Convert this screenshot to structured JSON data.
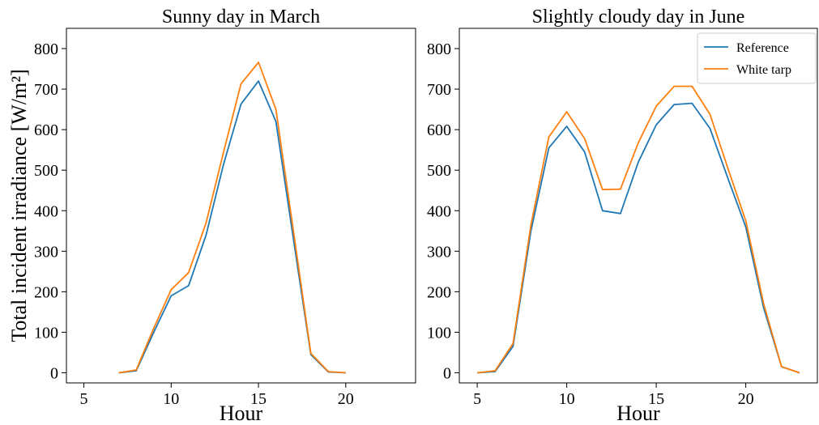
{
  "chart_data": [
    {
      "type": "line",
      "title": "Sunny day in March",
      "xlabel": "Hour",
      "ylabel": "Total incident irradiance [W/m²]",
      "xlim": [
        4,
        24
      ],
      "ylim": [
        -25,
        850
      ],
      "xticks": [
        5,
        10,
        15,
        20
      ],
      "yticks": [
        0,
        100,
        200,
        300,
        400,
        500,
        600,
        700,
        800
      ],
      "legend": null,
      "series": [
        {
          "name": "Reference",
          "color": "#1f77b4",
          "x": [
            7,
            8,
            9,
            10,
            11,
            12,
            13,
            14,
            15,
            16,
            17,
            18,
            19,
            20
          ],
          "y": [
            0,
            5,
            100,
            190,
            215,
            340,
            515,
            663,
            720,
            620,
            330,
            45,
            2,
            0
          ]
        },
        {
          "name": "White tarp",
          "color": "#ff7f0e",
          "x": [
            7,
            8,
            9,
            10,
            11,
            12,
            13,
            14,
            15,
            16,
            17,
            18,
            19,
            20
          ],
          "y": [
            0,
            7,
            110,
            205,
            247,
            370,
            545,
            713,
            766,
            650,
            350,
            48,
            3,
            0
          ]
        }
      ]
    },
    {
      "type": "line",
      "title": "Slightly cloudy day in June",
      "xlabel": "Hour",
      "ylabel": "",
      "xlim": [
        4,
        24
      ],
      "ylim": [
        -25,
        850
      ],
      "xticks": [
        5,
        10,
        15,
        20
      ],
      "yticks": [
        0,
        100,
        200,
        300,
        400,
        500,
        600,
        700,
        800
      ],
      "legend": "top-right",
      "series": [
        {
          "name": "Reference",
          "color": "#1f77b4",
          "x": [
            5,
            6,
            7,
            8,
            9,
            10,
            11,
            12,
            13,
            14,
            15,
            16,
            17,
            18,
            19,
            20,
            21,
            22,
            23
          ],
          "y": [
            0,
            3,
            65,
            350,
            555,
            608,
            545,
            400,
            393,
            520,
            612,
            662,
            665,
            603,
            480,
            360,
            160,
            15,
            0
          ]
        },
        {
          "name": "White tarp",
          "color": "#ff7f0e",
          "x": [
            5,
            6,
            7,
            8,
            9,
            10,
            11,
            12,
            13,
            14,
            15,
            16,
            17,
            18,
            19,
            20,
            21,
            22,
            23
          ],
          "y": [
            0,
            5,
            72,
            365,
            582,
            644,
            578,
            452,
            453,
            568,
            658,
            707,
            707,
            638,
            505,
            375,
            170,
            15,
            0
          ]
        }
      ]
    }
  ]
}
